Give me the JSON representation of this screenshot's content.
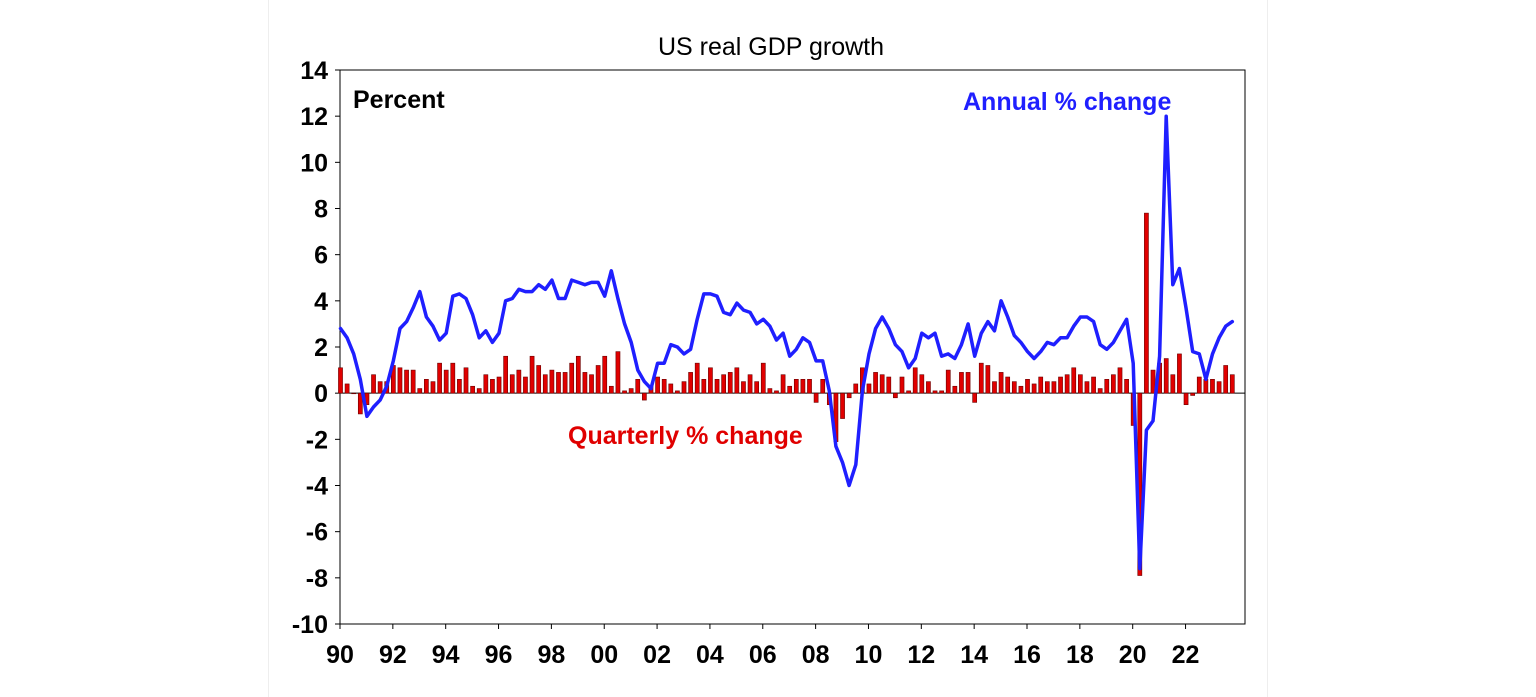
{
  "chart_data": {
    "type": "bar+line",
    "title": "US real GDP growth",
    "ylabel": "Percent",
    "ylim": [
      -10,
      14
    ],
    "yticks": [
      14,
      12,
      10,
      8,
      6,
      4,
      2,
      0,
      -2,
      -4,
      -6,
      -8,
      -10
    ],
    "xlim": [
      1990.0,
      2024.25
    ],
    "xtick_labels": [
      "90",
      "92",
      "94",
      "96",
      "98",
      "00",
      "02",
      "04",
      "06",
      "08",
      "10",
      "12",
      "14",
      "16",
      "18",
      "20",
      "22"
    ],
    "xtick_years": [
      1990,
      1992,
      1994,
      1996,
      1998,
      2000,
      2002,
      2004,
      2006,
      2008,
      2010,
      2012,
      2014,
      2016,
      2018,
      2020,
      2022
    ],
    "start_year": 1990,
    "colors": {
      "quarterly": "#e00000",
      "quarterly_edge": "#6b0000",
      "annual": "#1f1fff",
      "axis": "#000000"
    },
    "annotations": {
      "quarterly_label": "Quarterly % change",
      "annual_label": "Annual % change"
    },
    "series": [
      {
        "name": "Quarterly % change",
        "kind": "bar",
        "values": [
          1.1,
          0.4,
          0.0,
          -0.9,
          -0.5,
          0.8,
          0.5,
          0.5,
          1.2,
          1.1,
          1.0,
          1.0,
          0.2,
          0.6,
          0.5,
          1.3,
          1.0,
          1.3,
          0.6,
          1.1,
          0.3,
          0.2,
          0.8,
          0.6,
          0.7,
          1.6,
          0.8,
          1.0,
          0.7,
          1.6,
          1.2,
          0.8,
          1.0,
          0.9,
          0.9,
          1.3,
          1.6,
          0.9,
          0.8,
          1.2,
          1.6,
          0.3,
          1.8,
          0.1,
          0.2,
          0.6,
          -0.3,
          0.3,
          0.7,
          0.6,
          0.4,
          0.1,
          0.5,
          0.9,
          1.3,
          0.6,
          1.1,
          0.6,
          0.8,
          0.9,
          1.1,
          0.5,
          0.8,
          0.5,
          1.3,
          0.2,
          0.1,
          0.8,
          0.3,
          0.6,
          0.6,
          0.6,
          -0.4,
          0.6,
          -0.5,
          -2.1,
          -1.1,
          -0.2,
          0.4,
          1.1,
          0.4,
          0.9,
          0.8,
          0.7,
          -0.2,
          0.7,
          0.1,
          1.1,
          0.8,
          0.5,
          0.1,
          0.1,
          1.0,
          0.3,
          0.9,
          0.9,
          -0.4,
          1.3,
          1.2,
          0.5,
          0.9,
          0.7,
          0.5,
          0.3,
          0.6,
          0.4,
          0.7,
          0.5,
          0.5,
          0.7,
          0.8,
          1.1,
          0.8,
          0.5,
          0.7,
          0.2,
          0.6,
          0.8,
          1.1,
          0.6,
          -1.4,
          -7.9,
          7.8,
          1.0,
          1.3,
          1.5,
          0.8,
          1.7,
          -0.5,
          -0.1,
          0.7,
          0.6,
          0.6,
          0.5,
          1.2,
          0.8
        ]
      },
      {
        "name": "Annual % change",
        "kind": "line",
        "values": [
          2.8,
          2.4,
          1.7,
          0.6,
          -1.0,
          -0.6,
          -0.3,
          0.3,
          1.4,
          2.8,
          3.1,
          3.7,
          4.4,
          3.3,
          2.9,
          2.3,
          2.6,
          4.2,
          4.3,
          4.1,
          3.4,
          2.4,
          2.7,
          2.2,
          2.6,
          4.0,
          4.1,
          4.5,
          4.4,
          4.4,
          4.7,
          4.5,
          4.9,
          4.1,
          4.1,
          4.9,
          4.8,
          4.7,
          4.8,
          4.8,
          4.2,
          5.3,
          4.1,
          3.0,
          2.2,
          1.0,
          0.5,
          0.2,
          1.3,
          1.3,
          2.1,
          2.0,
          1.7,
          1.9,
          3.2,
          4.3,
          4.3,
          4.2,
          3.5,
          3.4,
          3.9,
          3.6,
          3.5,
          3.0,
          3.2,
          2.9,
          2.3,
          2.6,
          1.6,
          1.9,
          2.4,
          2.2,
          1.4,
          1.4,
          0.1,
          -2.3,
          -3.0,
          -4.0,
          -3.1,
          0.1,
          1.7,
          2.8,
          3.3,
          2.8,
          2.1,
          1.8,
          1.1,
          1.5,
          2.6,
          2.4,
          2.6,
          1.6,
          1.7,
          1.5,
          2.1,
          3.0,
          1.6,
          2.6,
          3.1,
          2.7,
          4.0,
          3.3,
          2.5,
          2.2,
          1.8,
          1.5,
          1.8,
          2.2,
          2.1,
          2.4,
          2.4,
          2.9,
          3.3,
          3.3,
          3.1,
          2.1,
          1.9,
          2.2,
          2.7,
          3.2,
          1.3,
          -7.6,
          -1.6,
          -1.2,
          1.6,
          12.0,
          4.7,
          5.4,
          3.7,
          1.8,
          1.7,
          0.6,
          1.7,
          2.4,
          2.9,
          3.1
        ]
      }
    ]
  }
}
